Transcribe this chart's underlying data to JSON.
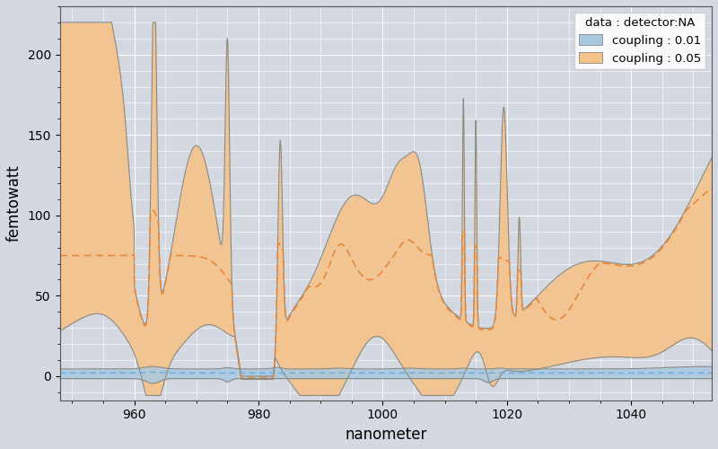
{
  "title": "",
  "xlabel": "nanometer",
  "ylabel": "femtowatt",
  "legend_title": "data : detector:NA",
  "legend_entries": [
    "coupling : 0.01",
    "coupling : 0.05"
  ],
  "xlim": [
    948,
    1053
  ],
  "ylim": [
    -15,
    230
  ],
  "yticks": [
    0,
    50,
    100,
    150,
    200
  ],
  "xticks": [
    960,
    980,
    1000,
    1020,
    1040
  ],
  "bg_color": "#d4d8e0",
  "plot_bg_color": "#d4d8e0",
  "orange_fill_color": "#f5c28a",
  "orange_line_color": "#e8873a",
  "blue_fill_color": "#a8c8e0",
  "blue_line_color": "#6aace0",
  "grid_color": "#ffffff",
  "figsize": [
    8.0,
    5.0
  ],
  "dpi": 100
}
